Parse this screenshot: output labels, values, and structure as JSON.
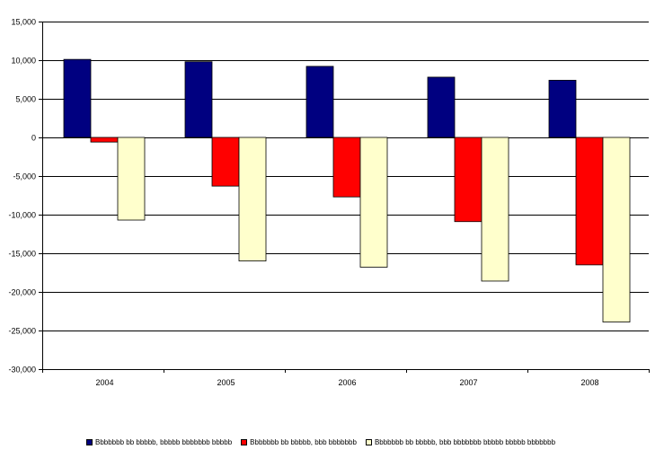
{
  "chart_data": {
    "type": "bar",
    "categories": [
      "2004",
      "2005",
      "2006",
      "2007",
      "2008"
    ],
    "series": [
      {
        "name": "Bbbbbbb bb bbbbb, bbbbb bbbbbbb bbbbb",
        "color": "#000080",
        "values": [
          10100,
          9800,
          9200,
          7800,
          7400
        ]
      },
      {
        "name": "Bbbbbbb bb bbbbb, bbb bbbbbbb",
        "color": "#ff0000",
        "values": [
          -600,
          -6300,
          -7700,
          -10900,
          -16500
        ]
      },
      {
        "name": "Bbbbbbb bb bbbbb, bbb bbbbbbb bbbbb bbbbb bbbbbbb",
        "color": "#ffffcc",
        "values": [
          -10700,
          -16000,
          -16800,
          -18600,
          -23900
        ]
      }
    ],
    "yticks": [
      "15,000",
      "10,000",
      "5,000",
      "0",
      "-5,000",
      "-10,000",
      "-15,000",
      "-20,000",
      "-25,000",
      "-30,000"
    ],
    "ylim": [
      -30000,
      15000
    ],
    "grid": true,
    "legend_position": "bottom"
  }
}
